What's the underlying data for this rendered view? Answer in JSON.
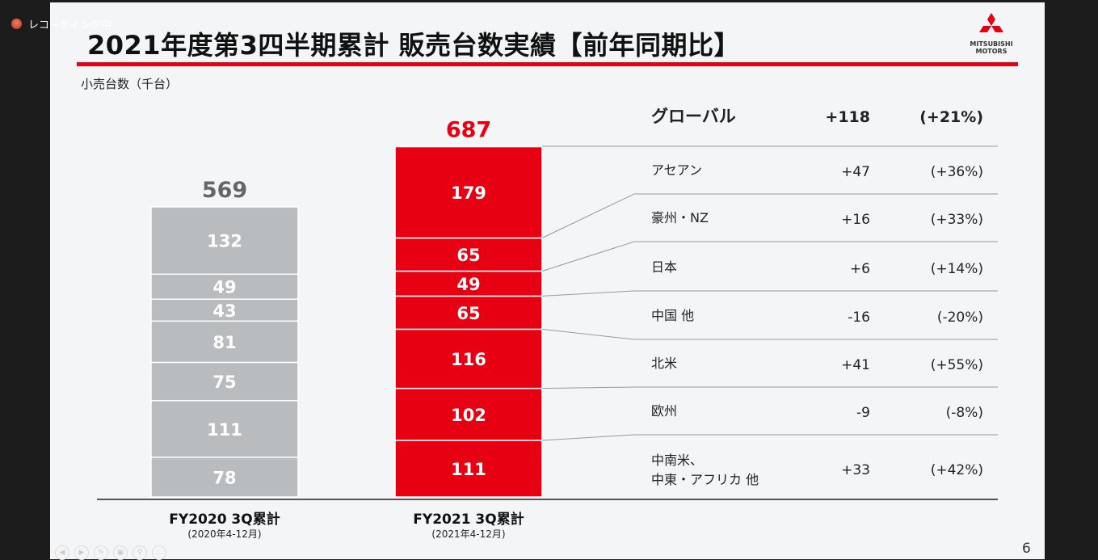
{
  "overlay": {
    "recording_label": "レコーディング中"
  },
  "slide": {
    "title": "2021年度第3四半期累計 販売台数実績【前年同期比】",
    "logo": "MITSUBISHI MOTORS",
    "unit_label": "小売台数（千台）",
    "page_number": "6"
  },
  "colors": {
    "accent": "#e60012",
    "fy2020_bar": "#b9bcbf",
    "text": "#222222"
  },
  "chart_data": {
    "type": "stacked-bar",
    "categories": [
      "FY2020 3Q累計",
      "FY2021 3Q累計"
    ],
    "category_sublabels": [
      "(2020年4-12月)",
      "(2021年4-12月)"
    ],
    "totals": [
      569,
      687
    ],
    "segments_bottom_to_top": [
      {
        "values": [
          78,
          111
        ]
      },
      {
        "values": [
          111,
          102
        ]
      },
      {
        "values": [
          75,
          116
        ]
      },
      {
        "values": [
          81,
          65
        ]
      },
      {
        "values": [
          43,
          49
        ]
      },
      {
        "values": [
          49,
          65
        ]
      },
      {
        "values": [
          132,
          179
        ]
      }
    ],
    "table": {
      "header": {
        "label": "グローバル",
        "diff": "+118",
        "pct": "(+21%)"
      },
      "rows": [
        {
          "label": "アセアン",
          "diff": "+47",
          "pct": "(+36%)"
        },
        {
          "label": "豪州・NZ",
          "diff": "+16",
          "pct": "(+33%)"
        },
        {
          "label": "日本",
          "diff": "+6",
          "pct": "(+14%)"
        },
        {
          "label": "中国 他",
          "diff": "-16",
          "pct": "(-20%)"
        },
        {
          "label": "北米",
          "diff": "+41",
          "pct": "(+55%)"
        },
        {
          "label": "欧州",
          "diff": "-9",
          "pct": "(-8%)"
        },
        {
          "label": "中南米、\n中東・アフリカ 他",
          "diff": "+33",
          "pct": "(+42%)"
        }
      ]
    }
  }
}
